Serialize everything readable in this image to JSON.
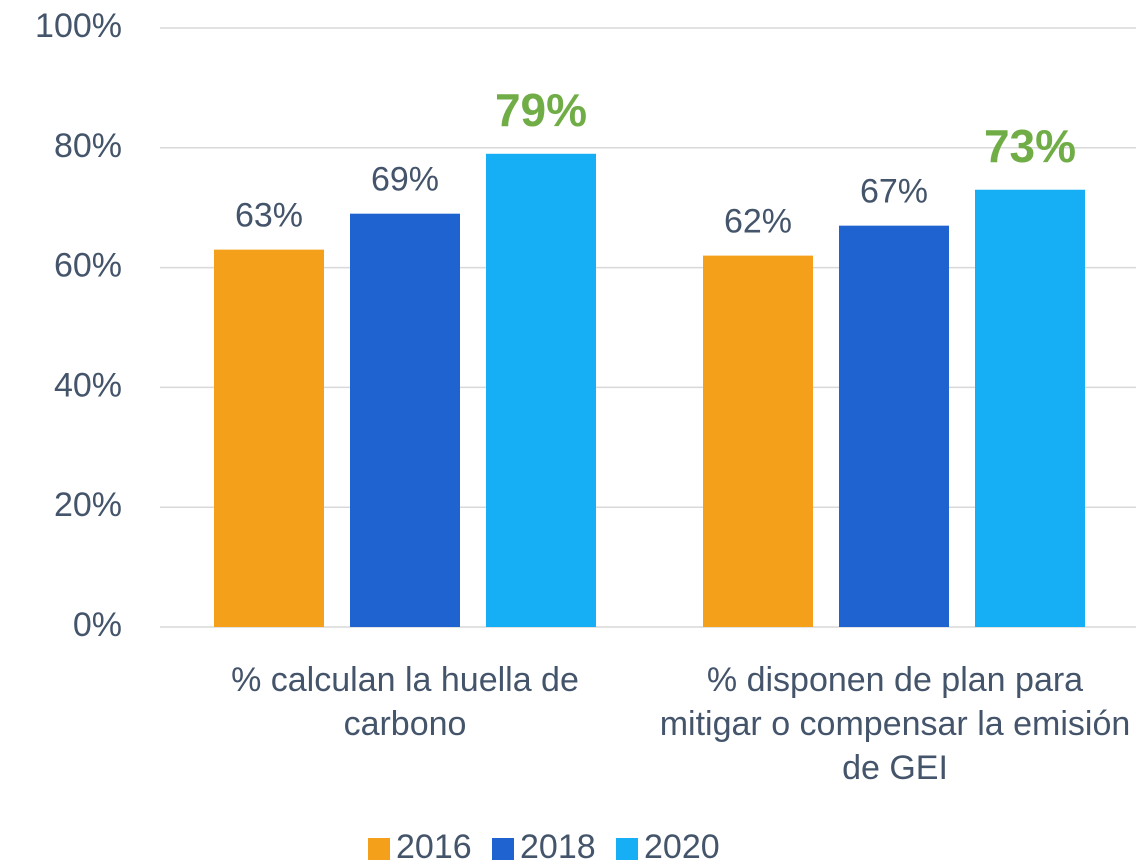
{
  "chart_data": {
    "type": "bar",
    "categories": [
      "% calculan la huella de carbono",
      "% disponen de plan para mitigar o compensar la emisión de GEI"
    ],
    "series": [
      {
        "name": "2016",
        "color": "#f5a01a",
        "values": [
          63,
          62
        ],
        "value_labels": [
          "63%",
          "62%"
        ]
      },
      {
        "name": "2018",
        "color": "#1e63cf",
        "values": [
          69,
          67
        ],
        "value_labels": [
          "69%",
          "67%"
        ]
      },
      {
        "name": "2020",
        "color": "#16aef5",
        "values": [
          79,
          73
        ],
        "value_labels": [
          "79%",
          "73%"
        ],
        "value_label_color": "#70ad47",
        "value_label_bold": true
      }
    ],
    "ylim": [
      0,
      100
    ],
    "yticks": [
      {
        "value": 0,
        "label": "0%"
      },
      {
        "value": 20,
        "label": "20%"
      },
      {
        "value": 40,
        "label": "40%"
      },
      {
        "value": 60,
        "label": "60%"
      },
      {
        "value": 80,
        "label": "80%"
      },
      {
        "value": 100,
        "label": "100%"
      }
    ],
    "grid": true,
    "legend": "bottom"
  }
}
